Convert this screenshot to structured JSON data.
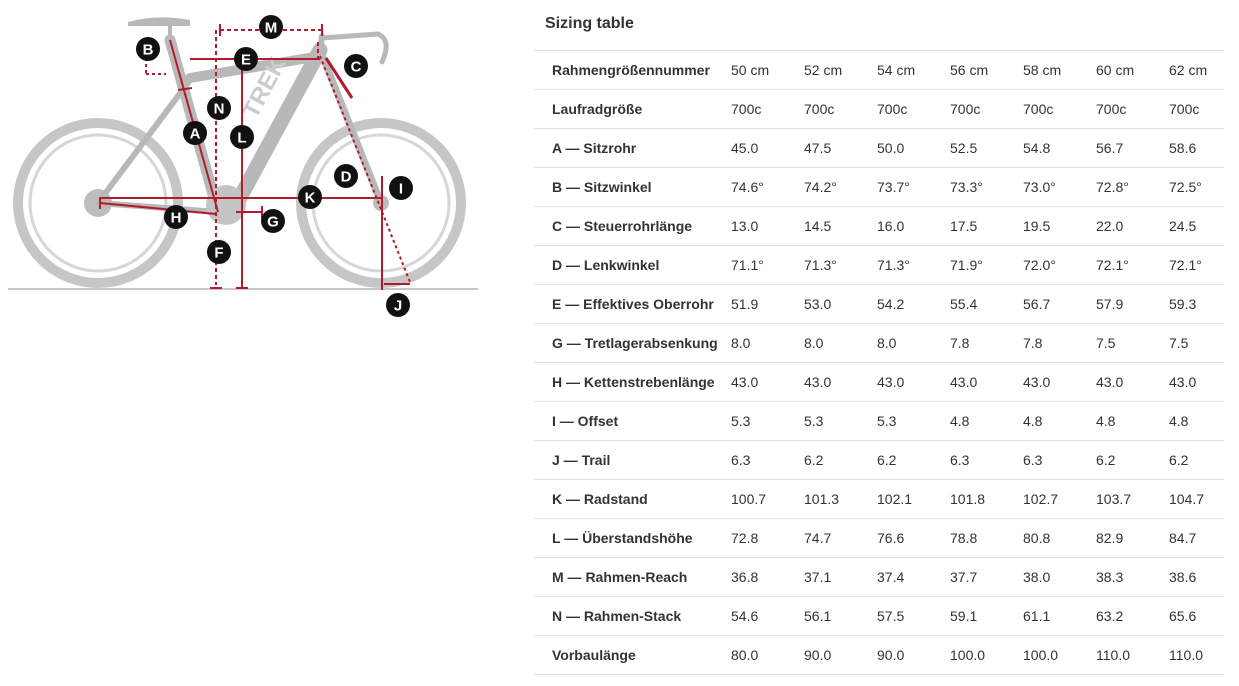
{
  "diagram": {
    "callouts": [
      "A",
      "B",
      "C",
      "D",
      "E",
      "F",
      "G",
      "H",
      "I",
      "J",
      "K",
      "L",
      "M",
      "N"
    ],
    "frame_watermark": "TREK"
  },
  "sizing": {
    "title": "Sizing table",
    "rows": [
      {
        "label": "Rahmengrößennummer",
        "values": [
          "50 cm",
          "52 cm",
          "54 cm",
          "56 cm",
          "58 cm",
          "60 cm",
          "62 cm"
        ]
      },
      {
        "label": "Laufradgröße",
        "values": [
          "700c",
          "700c",
          "700c",
          "700c",
          "700c",
          "700c",
          "700c"
        ]
      },
      {
        "label": "A — Sitzrohr",
        "values": [
          "45.0",
          "47.5",
          "50.0",
          "52.5",
          "54.8",
          "56.7",
          "58.6"
        ]
      },
      {
        "label": "B — Sitzwinkel",
        "values": [
          "74.6°",
          "74.2°",
          "73.7°",
          "73.3°",
          "73.0°",
          "72.8°",
          "72.5°"
        ]
      },
      {
        "label": "C — Steuerrohrlänge",
        "values": [
          "13.0",
          "14.5",
          "16.0",
          "17.5",
          "19.5",
          "22.0",
          "24.5"
        ]
      },
      {
        "label": "D — Lenkwinkel",
        "values": [
          "71.1°",
          "71.3°",
          "71.3°",
          "71.9°",
          "72.0°",
          "72.1°",
          "72.1°"
        ]
      },
      {
        "label": "E — Effektives Oberrohr",
        "values": [
          "51.9",
          "53.0",
          "54.2",
          "55.4",
          "56.7",
          "57.9",
          "59.3"
        ]
      },
      {
        "label": "G — Tretlagerabsenkung",
        "values": [
          "8.0",
          "8.0",
          "8.0",
          "7.8",
          "7.8",
          "7.5",
          "7.5"
        ]
      },
      {
        "label": "H — Kettenstrebenlänge",
        "values": [
          "43.0",
          "43.0",
          "43.0",
          "43.0",
          "43.0",
          "43.0",
          "43.0"
        ]
      },
      {
        "label": "I — Offset",
        "values": [
          "5.3",
          "5.3",
          "5.3",
          "4.8",
          "4.8",
          "4.8",
          "4.8"
        ]
      },
      {
        "label": "J — Trail",
        "values": [
          "6.3",
          "6.2",
          "6.2",
          "6.3",
          "6.3",
          "6.2",
          "6.2"
        ]
      },
      {
        "label": "K — Radstand",
        "values": [
          "100.7",
          "101.3",
          "102.1",
          "101.8",
          "102.7",
          "103.7",
          "104.7"
        ]
      },
      {
        "label": "L — Überstandshöhe",
        "values": [
          "72.8",
          "74.7",
          "76.6",
          "78.8",
          "80.8",
          "82.9",
          "84.7"
        ]
      },
      {
        "label": "M — Rahmen-Reach",
        "values": [
          "36.8",
          "37.1",
          "37.4",
          "37.7",
          "38.0",
          "38.3",
          "38.6"
        ]
      },
      {
        "label": "N — Rahmen-Stack",
        "values": [
          "54.6",
          "56.1",
          "57.5",
          "59.1",
          "61.1",
          "63.2",
          "65.6"
        ]
      },
      {
        "label": "Vorbaulänge",
        "values": [
          "80.0",
          "90.0",
          "90.0",
          "100.0",
          "100.0",
          "110.0",
          "110.0"
        ]
      }
    ]
  }
}
